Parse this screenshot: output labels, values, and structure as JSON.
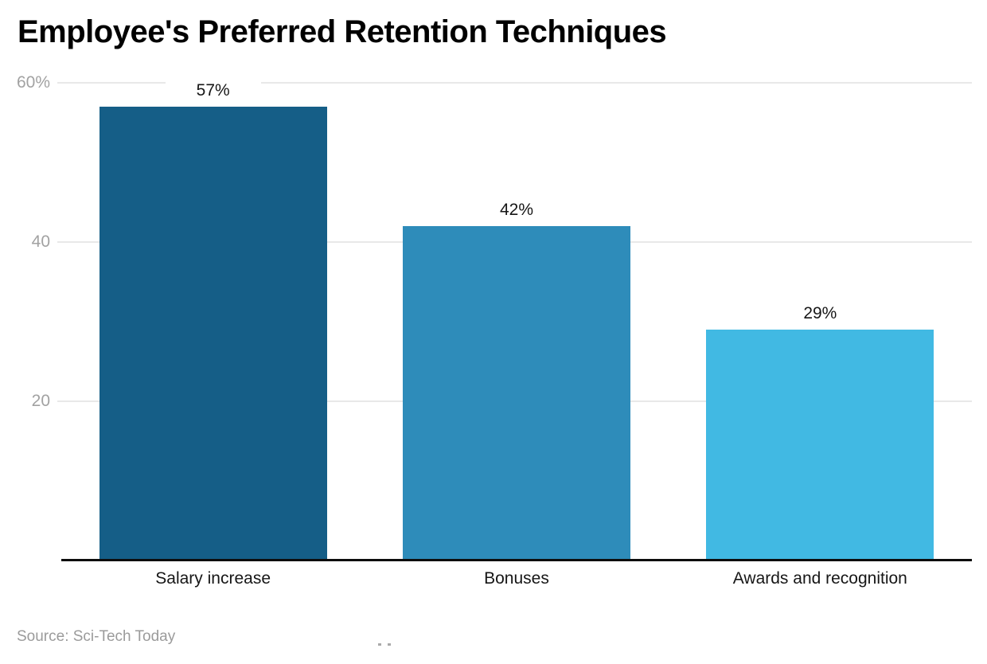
{
  "chart_data": {
    "type": "bar",
    "title": "Employee's Preferred Retention Techniques",
    "categories": [
      "Salary increase",
      "Bonuses",
      "Awards and recognition"
    ],
    "values": [
      57,
      42,
      29
    ],
    "value_labels": [
      "57%",
      "42%",
      "29%"
    ],
    "bar_colors": [
      "#155E87",
      "#2E8CBA",
      "#41B9E3"
    ],
    "y_ticks": [
      {
        "value": 60,
        "label": "60%"
      },
      {
        "value": 40,
        "label": "40"
      },
      {
        "value": 20,
        "label": "20"
      }
    ],
    "ylim": [
      0,
      60
    ],
    "grid": true,
    "legend": "none",
    "xlabel": "",
    "ylabel": "",
    "source": "Source: Sci-Tech Today"
  },
  "colors": {
    "title_text": "#000000",
    "label_text": "#161616",
    "muted_text": "#9b9b9b",
    "tick_text": "#a2a2a2",
    "gridline": "#e8e8e8",
    "axis_line": "#0d0d0d",
    "background": "#ffffff"
  }
}
